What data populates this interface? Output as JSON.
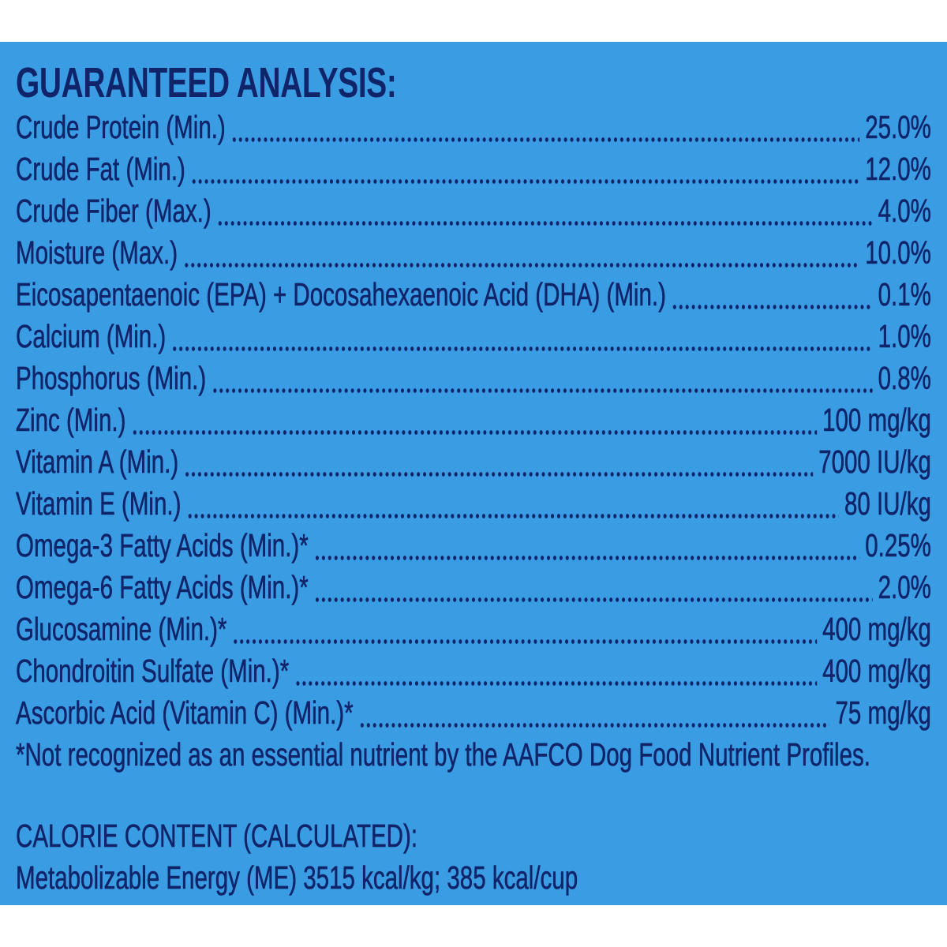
{
  "title": "GUARANTEED ANALYSIS:",
  "rows": [
    {
      "label": "Crude Protein (Min.)",
      "value": "25.0%"
    },
    {
      "label": "Crude Fat (Min.)",
      "value": "12.0%"
    },
    {
      "label": "Crude Fiber (Max.)",
      "value": "4.0%"
    },
    {
      "label": "Moisture (Max.)",
      "value": "10.0%"
    },
    {
      "label": "Eicosapentaenoic (EPA) + Docosahexaenoic Acid (DHA) (Min.)",
      "value": "0.1%"
    },
    {
      "label": "Calcium (Min.)",
      "value": "1.0%"
    },
    {
      "label": "Phosphorus (Min.)",
      "value": "0.8%"
    },
    {
      "label": "Zinc (Min.)",
      "value": "100 mg/kg"
    },
    {
      "label": "Vitamin A (Min.)",
      "value": "7000 IU/kg"
    },
    {
      "label": "Vitamin E (Min.)",
      "value": "80 IU/kg"
    },
    {
      "label": "Omega-3 Fatty Acids (Min.)*",
      "value": "0.25%"
    },
    {
      "label": "Omega-6 Fatty Acids (Min.)*",
      "value": "2.0%"
    },
    {
      "label": "Glucosamine (Min.)*",
      "value": "400 mg/kg"
    },
    {
      "label": "Chondroitin Sulfate (Min.)*",
      "value": "400 mg/kg"
    },
    {
      "label": "Ascorbic Acid (Vitamin C) (Min.)*",
      "value": "75 mg/kg"
    }
  ],
  "footnote": "*Not recognized as an essential nutrient by the AAFCO Dog Food Nutrient Profiles.",
  "calorie_title": "CALORIE CONTENT (CALCULATED):",
  "calorie_text": "Metabolizable Energy (ME) 3515 kcal/kg;  385 kcal/cup"
}
